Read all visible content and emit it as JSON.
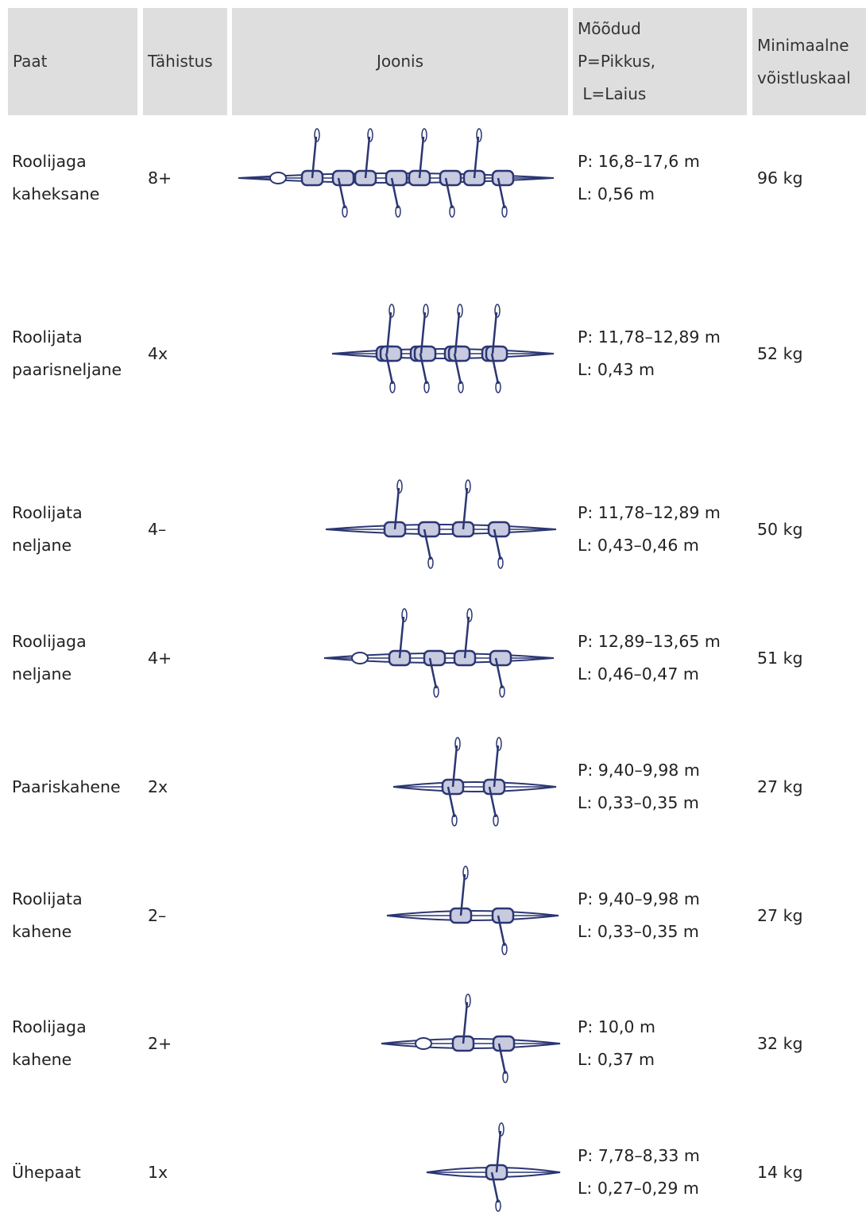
{
  "table": {
    "header": [
      [
        "Paat"
      ],
      [
        "Tähistus"
      ],
      [
        "Joonis"
      ],
      [
        "Mõõdud",
        "P=Pikkus,",
        " L=Laius"
      ],
      [
        "Minimaalne",
        "võistluskaal"
      ]
    ],
    "rows": [
      {
        "boat": [
          "Roolijaga",
          "kaheksane"
        ],
        "code": "8+",
        "dims": [
          "P: 16,8–17,6 m",
          "L: 0,56 m"
        ],
        "weight": "96 kg"
      },
      {
        "boat": [
          "Roolijata",
          "paarisneljane"
        ],
        "code": "4x",
        "dims": [
          "P: 11,78–12,89 m",
          "L: 0,43 m"
        ],
        "weight": "52 kg"
      },
      {
        "boat": [
          "Roolijata",
          "neljane"
        ],
        "code": "4–",
        "dims": [
          "P: 11,78–12,89 m",
          "L: 0,43–0,46 m"
        ],
        "weight": "50 kg"
      },
      {
        "boat": [
          "Roolijaga",
          "neljane"
        ],
        "code": "4+",
        "dims": [
          "P: 12,89–13,65 m",
          "L: 0,46–0,47 m"
        ],
        "weight": "51 kg"
      },
      {
        "boat": [
          "Paariskahene"
        ],
        "code": "2x",
        "dims": [
          "P: 9,40–9,98 m",
          "L: 0,33–0,35 m"
        ],
        "weight": "27 kg"
      },
      {
        "boat": [
          "Roolijata",
          "kahene"
        ],
        "code": "2–",
        "dims": [
          "P: 9,40–9,98 m",
          "L: 0,33–0,35 m"
        ],
        "weight": "27 kg"
      },
      {
        "boat": [
          "Roolijaga",
          "kahene"
        ],
        "code": "2+",
        "dims": [
          "P: 10,0 m",
          "L: 0,37 m"
        ],
        "weight": "32 kg"
      },
      {
        "boat": [
          "Ühepaat"
        ],
        "code": "1x",
        "dims": [
          "P: 7,78–8,33 m",
          "L: 0,27–0,29 m"
        ],
        "weight": "14 kg"
      }
    ]
  }
}
